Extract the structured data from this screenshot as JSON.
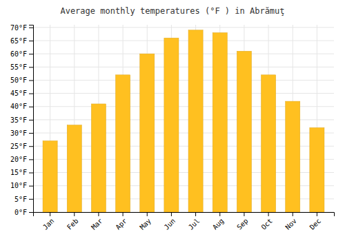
{
  "chart_data": {
    "type": "bar",
    "title": "Average monthly temperatures (°F ) in Abrămuţ",
    "categories": [
      "Jan",
      "Feb",
      "Mar",
      "Apr",
      "May",
      "Jun",
      "Jul",
      "Aug",
      "Sep",
      "Oct",
      "Nov",
      "Dec"
    ],
    "values": [
      27,
      33,
      41,
      52,
      60,
      66,
      69,
      68,
      61,
      52,
      42,
      32
    ],
    "color": "#FFC020",
    "ylim": [
      0,
      71
    ],
    "yticks": [
      {
        "value": 0,
        "label": "0°F"
      },
      {
        "value": 5,
        "label": "5°F"
      },
      {
        "value": 10,
        "label": "10°F"
      },
      {
        "value": 15,
        "label": "15°F"
      },
      {
        "value": 20,
        "label": "20°F"
      },
      {
        "value": 25,
        "label": "25°F"
      },
      {
        "value": 30,
        "label": "30°F"
      },
      {
        "value": 35,
        "label": "35°F"
      },
      {
        "value": 40,
        "label": "40°F"
      },
      {
        "value": 45,
        "label": "45°F"
      },
      {
        "value": 50,
        "label": "50°F"
      },
      {
        "value": 55,
        "label": "55°F"
      },
      {
        "value": 60,
        "label": "60°F"
      },
      {
        "value": 65,
        "label": "65°F"
      },
      {
        "value": 70,
        "label": "70°F"
      }
    ],
    "grid": true
  }
}
